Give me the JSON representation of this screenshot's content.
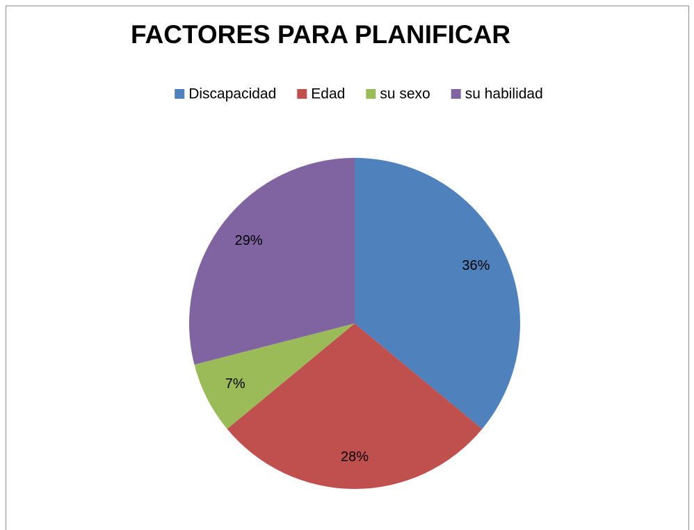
{
  "chart_data": {
    "type": "pie",
    "title": "FACTORES PARA PLANIFICAR",
    "categories": [
      "Discapacidad",
      "Edad",
      "su sexo",
      "su habilidad"
    ],
    "values": [
      36,
      28,
      7,
      29
    ],
    "value_labels": [
      "36%",
      "28%",
      "7%",
      "29%"
    ],
    "colors": [
      "#4f81bd",
      "#c0504d",
      "#9bbb59",
      "#8064a2"
    ],
    "legend": "top"
  }
}
